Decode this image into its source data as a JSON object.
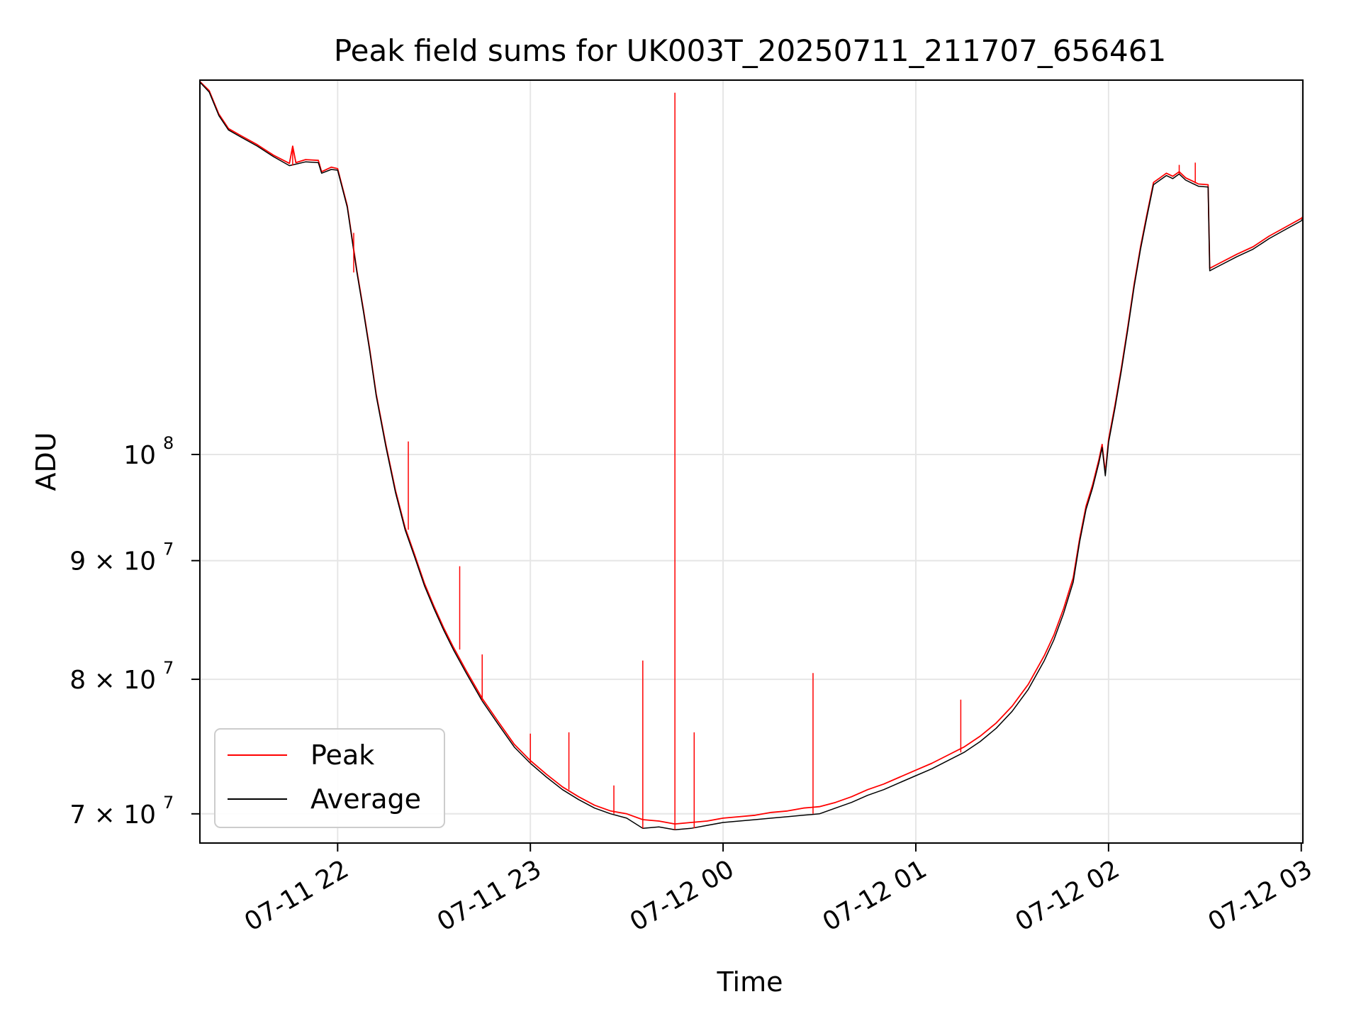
{
  "chart_data": {
    "type": "line",
    "title": "Peak field sums for UK003T_20250711_211707_656461",
    "xlabel": "Time",
    "ylabel": "ADU",
    "x_axis": {
      "type": "time",
      "range": [
        "2025-07-11 21:17:07",
        "2025-07-12 03:00:30"
      ],
      "ticks": [
        {
          "value": "2025-07-11 22:00",
          "label": "07-11 22"
        },
        {
          "value": "2025-07-11 23:00",
          "label": "07-11 23"
        },
        {
          "value": "2025-07-12 00:00",
          "label": "07-12 00"
        },
        {
          "value": "2025-07-12 01:00",
          "label": "07-12 01"
        },
        {
          "value": "2025-07-12 02:00",
          "label": "07-12 02"
        },
        {
          "value": "2025-07-12 03:00",
          "label": "07-12 03"
        }
      ],
      "tick_label_rotation": 30
    },
    "y_axis": {
      "scale": "log",
      "range": [
        68000000,
        145000000
      ],
      "ticks": [
        {
          "value": 70000000,
          "label": "7 × 10",
          "exponent": "7"
        },
        {
          "value": 80000000,
          "label": "8 × 10",
          "exponent": "7"
        },
        {
          "value": 90000000,
          "label": "9 × 10",
          "exponent": "7"
        },
        {
          "value": 100000000,
          "label": "10",
          "exponent": "8"
        }
      ]
    },
    "grid": true,
    "legend": {
      "placement": "lower-left"
    },
    "series": [
      {
        "name": "Peak",
        "color": "#ff0000",
        "points": [
          [
            "2025-07-11 21:17:07",
            144800000
          ],
          [
            "2025-07-11 21:20",
            143500000
          ],
          [
            "2025-07-11 21:23",
            140200000
          ],
          [
            "2025-07-11 21:26",
            138200000
          ],
          [
            "2025-07-11 21:30",
            137200000
          ],
          [
            "2025-07-11 21:35",
            136000000
          ],
          [
            "2025-07-11 21:40",
            134600000
          ],
          [
            "2025-07-11 21:45",
            133500000
          ],
          [
            "2025-07-11 21:46",
            135800000
          ],
          [
            "2025-07-11 21:47",
            133600000
          ],
          [
            "2025-07-11 21:50",
            134000000
          ],
          [
            "2025-07-11 21:54",
            133900000
          ],
          [
            "2025-07-11 21:55",
            132400000
          ],
          [
            "2025-07-11 21:58",
            133000000
          ],
          [
            "2025-07-11 22:00",
            132800000
          ],
          [
            "2025-07-11 22:03",
            128000000
          ],
          [
            "2025-07-11 22:06",
            120000000
          ],
          [
            "2025-07-11 22:08",
            115500000
          ],
          [
            "2025-07-11 22:10",
            111000000
          ],
          [
            "2025-07-11 22:12",
            106200000
          ],
          [
            "2025-07-11 22:15",
            101000000
          ],
          [
            "2025-07-11 22:18",
            96500000
          ],
          [
            "2025-07-11 22:21",
            93000000
          ],
          [
            "2025-07-11 22:24",
            90500000
          ],
          [
            "2025-07-11 22:27",
            88000000
          ],
          [
            "2025-07-11 22:30",
            86000000
          ],
          [
            "2025-07-11 22:33",
            84200000
          ],
          [
            "2025-07-11 22:36",
            82600000
          ],
          [
            "2025-07-11 22:40",
            80700000
          ],
          [
            "2025-07-11 22:45",
            78500000
          ],
          [
            "2025-07-11 22:50",
            76700000
          ],
          [
            "2025-07-11 22:55",
            75000000
          ],
          [
            "2025-07-11 23:00",
            73800000
          ],
          [
            "2025-07-11 23:05",
            72800000
          ],
          [
            "2025-07-11 23:10",
            71900000
          ],
          [
            "2025-07-11 23:15",
            71200000
          ],
          [
            "2025-07-11 23:20",
            70600000
          ],
          [
            "2025-07-11 23:25",
            70200000
          ],
          [
            "2025-07-11 23:30",
            70000000
          ],
          [
            "2025-07-11 23:35",
            69600000
          ],
          [
            "2025-07-11 23:40",
            69500000
          ],
          [
            "2025-07-11 23:45",
            69300000
          ],
          [
            "2025-07-11 23:50",
            69400000
          ],
          [
            "2025-07-11 23:55",
            69500000
          ],
          [
            "2025-07-12 00:00",
            69700000
          ],
          [
            "2025-07-12 00:05",
            69800000
          ],
          [
            "2025-07-12 00:10",
            69900000
          ],
          [
            "2025-07-12 00:15",
            70100000
          ],
          [
            "2025-07-12 00:20",
            70200000
          ],
          [
            "2025-07-12 00:25",
            70400000
          ],
          [
            "2025-07-12 00:30",
            70500000
          ],
          [
            "2025-07-12 00:35",
            70800000
          ],
          [
            "2025-07-12 00:40",
            71200000
          ],
          [
            "2025-07-12 00:45",
            71700000
          ],
          [
            "2025-07-12 00:50",
            72100000
          ],
          [
            "2025-07-12 00:55",
            72600000
          ],
          [
            "2025-07-12 01:00",
            73100000
          ],
          [
            "2025-07-12 01:05",
            73600000
          ],
          [
            "2025-07-12 01:10",
            74200000
          ],
          [
            "2025-07-12 01:15",
            74800000
          ],
          [
            "2025-07-12 01:20",
            75600000
          ],
          [
            "2025-07-12 01:25",
            76600000
          ],
          [
            "2025-07-12 01:30",
            77900000
          ],
          [
            "2025-07-12 01:35",
            79600000
          ],
          [
            "2025-07-12 01:40",
            81900000
          ],
          [
            "2025-07-12 01:43",
            83600000
          ],
          [
            "2025-07-12 01:46",
            85800000
          ],
          [
            "2025-07-12 01:49",
            88500000
          ],
          [
            "2025-07-12 01:51",
            92000000
          ],
          [
            "2025-07-12 01:53",
            95000000
          ],
          [
            "2025-07-12 01:55",
            97000000
          ],
          [
            "2025-07-12 01:57",
            99500000
          ],
          [
            "2025-07-12 01:58",
            101000000
          ],
          [
            "2025-07-12 01:59",
            98200000
          ],
          [
            "2025-07-12 02:00",
            101500000
          ],
          [
            "2025-07-12 02:02",
            105000000
          ],
          [
            "2025-07-12 02:04",
            109000000
          ],
          [
            "2025-07-12 02:06",
            113500000
          ],
          [
            "2025-07-12 02:08",
            118500000
          ],
          [
            "2025-07-12 02:10",
            123000000
          ],
          [
            "2025-07-12 02:12",
            127000000
          ],
          [
            "2025-07-12 02:14",
            131000000
          ],
          [
            "2025-07-12 02:16",
            131600000
          ],
          [
            "2025-07-12 02:18",
            132200000
          ],
          [
            "2025-07-12 02:20",
            131800000
          ],
          [
            "2025-07-12 02:22",
            132400000
          ],
          [
            "2025-07-12 02:24",
            131600000
          ],
          [
            "2025-07-12 02:26",
            131200000
          ],
          [
            "2025-07-12 02:28",
            130800000
          ],
          [
            "2025-07-12 02:31",
            130700000
          ],
          [
            "2025-07-12 02:31.5",
            120300000
          ],
          [
            "2025-07-12 02:34",
            120800000
          ],
          [
            "2025-07-12 02:40",
            122000000
          ],
          [
            "2025-07-12 02:45",
            122900000
          ],
          [
            "2025-07-12 02:50",
            124200000
          ],
          [
            "2025-07-12 02:55",
            125300000
          ],
          [
            "2025-07-12 03:00",
            126400000
          ],
          [
            "2025-07-12 03:00:30",
            126600000
          ]
        ],
        "spikes": [
          [
            "2025-07-11 21:46",
            135800000
          ],
          [
            "2025-07-11 22:05",
            124600000
          ],
          [
            "2025-07-11 22:22",
            101300000
          ],
          [
            "2025-07-11 22:38",
            89500000
          ],
          [
            "2025-07-11 22:45",
            82000000
          ],
          [
            "2025-07-11 23:00",
            75800000
          ],
          [
            "2025-07-11 23:12",
            75900000
          ],
          [
            "2025-07-11 23:26",
            72000000
          ],
          [
            "2025-07-11 23:35",
            81500000
          ],
          [
            "2025-07-11 23:45",
            143200000
          ],
          [
            "2025-07-11 23:51",
            75900000
          ],
          [
            "2025-07-12 00:28",
            80500000
          ],
          [
            "2025-07-12 01:14",
            78400000
          ],
          [
            "2025-07-12 02:22",
            133300000
          ],
          [
            "2025-07-12 02:27",
            133600000
          ]
        ]
      },
      {
        "name": "Average",
        "color": "#000000",
        "points": [
          [
            "2025-07-11 21:17:07",
            144700000
          ],
          [
            "2025-07-11 21:20",
            143300000
          ],
          [
            "2025-07-11 21:23",
            140000000
          ],
          [
            "2025-07-11 21:26",
            138000000
          ],
          [
            "2025-07-11 21:30",
            137000000
          ],
          [
            "2025-07-11 21:35",
            135800000
          ],
          [
            "2025-07-11 21:40",
            134400000
          ],
          [
            "2025-07-11 21:45",
            133200000
          ],
          [
            "2025-07-11 21:50",
            133700000
          ],
          [
            "2025-07-11 21:54",
            133600000
          ],
          [
            "2025-07-11 21:55",
            132200000
          ],
          [
            "2025-07-11 21:58",
            132700000
          ],
          [
            "2025-07-11 22:00",
            132600000
          ],
          [
            "2025-07-11 22:03",
            127800000
          ],
          [
            "2025-07-11 22:06",
            119800000
          ],
          [
            "2025-07-11 22:08",
            115300000
          ],
          [
            "2025-07-11 22:10",
            110800000
          ],
          [
            "2025-07-11 22:12",
            106000000
          ],
          [
            "2025-07-11 22:15",
            100800000
          ],
          [
            "2025-07-11 22:18",
            96300000
          ],
          [
            "2025-07-11 22:21",
            92800000
          ],
          [
            "2025-07-11 22:24",
            90300000
          ],
          [
            "2025-07-11 22:27",
            87800000
          ],
          [
            "2025-07-11 22:30",
            85800000
          ],
          [
            "2025-07-11 22:33",
            84000000
          ],
          [
            "2025-07-11 22:36",
            82400000
          ],
          [
            "2025-07-11 22:40",
            80500000
          ],
          [
            "2025-07-11 22:45",
            78300000
          ],
          [
            "2025-07-11 22:50",
            76500000
          ],
          [
            "2025-07-11 22:55",
            74800000
          ],
          [
            "2025-07-11 23:00",
            73600000
          ],
          [
            "2025-07-11 23:05",
            72600000
          ],
          [
            "2025-07-11 23:10",
            71700000
          ],
          [
            "2025-07-11 23:15",
            71000000
          ],
          [
            "2025-07-11 23:20",
            70400000
          ],
          [
            "2025-07-11 23:25",
            70000000
          ],
          [
            "2025-07-11 23:30",
            69700000
          ],
          [
            "2025-07-11 23:35",
            69000000
          ],
          [
            "2025-07-11 23:40",
            69100000
          ],
          [
            "2025-07-11 23:45",
            68900000
          ],
          [
            "2025-07-11 23:50",
            69000000
          ],
          [
            "2025-07-11 23:55",
            69200000
          ],
          [
            "2025-07-12 00:00",
            69400000
          ],
          [
            "2025-07-12 00:05",
            69500000
          ],
          [
            "2025-07-12 00:10",
            69600000
          ],
          [
            "2025-07-12 00:15",
            69700000
          ],
          [
            "2025-07-12 00:20",
            69800000
          ],
          [
            "2025-07-12 00:25",
            69900000
          ],
          [
            "2025-07-12 00:30",
            70000000
          ],
          [
            "2025-07-12 00:35",
            70400000
          ],
          [
            "2025-07-12 00:40",
            70800000
          ],
          [
            "2025-07-12 00:45",
            71300000
          ],
          [
            "2025-07-12 00:50",
            71700000
          ],
          [
            "2025-07-12 00:55",
            72200000
          ],
          [
            "2025-07-12 01:00",
            72700000
          ],
          [
            "2025-07-12 01:05",
            73200000
          ],
          [
            "2025-07-12 01:10",
            73800000
          ],
          [
            "2025-07-12 01:15",
            74400000
          ],
          [
            "2025-07-12 01:20",
            75200000
          ],
          [
            "2025-07-12 01:25",
            76200000
          ],
          [
            "2025-07-12 01:30",
            77500000
          ],
          [
            "2025-07-12 01:35",
            79200000
          ],
          [
            "2025-07-12 01:40",
            81500000
          ],
          [
            "2025-07-12 01:43",
            83200000
          ],
          [
            "2025-07-12 01:46",
            85400000
          ],
          [
            "2025-07-12 01:49",
            88100000
          ],
          [
            "2025-07-12 01:51",
            91700000
          ],
          [
            "2025-07-12 01:53",
            94700000
          ],
          [
            "2025-07-12 01:55",
            96700000
          ],
          [
            "2025-07-12 01:57",
            99200000
          ],
          [
            "2025-07-12 01:58",
            100700000
          ],
          [
            "2025-07-12 01:59",
            97900000
          ],
          [
            "2025-07-12 02:00",
            101200000
          ],
          [
            "2025-07-12 02:02",
            104700000
          ],
          [
            "2025-07-12 02:04",
            108700000
          ],
          [
            "2025-07-12 02:06",
            113200000
          ],
          [
            "2025-07-12 02:08",
            118200000
          ],
          [
            "2025-07-12 02:10",
            122700000
          ],
          [
            "2025-07-12 02:12",
            126700000
          ],
          [
            "2025-07-12 02:14",
            130700000
          ],
          [
            "2025-07-12 02:16",
            131300000
          ],
          [
            "2025-07-12 02:18",
            131900000
          ],
          [
            "2025-07-12 02:20",
            131500000
          ],
          [
            "2025-07-12 02:22",
            132100000
          ],
          [
            "2025-07-12 02:24",
            131300000
          ],
          [
            "2025-07-12 02:26",
            130900000
          ],
          [
            "2025-07-12 02:28",
            130500000
          ],
          [
            "2025-07-12 02:31",
            130400000
          ],
          [
            "2025-07-12 02:31.5",
            120000000
          ],
          [
            "2025-07-12 02:34",
            120500000
          ],
          [
            "2025-07-12 02:40",
            121700000
          ],
          [
            "2025-07-12 02:45",
            122600000
          ],
          [
            "2025-07-12 02:50",
            123900000
          ],
          [
            "2025-07-12 02:55",
            125000000
          ],
          [
            "2025-07-12 03:00",
            126100000
          ],
          [
            "2025-07-12 03:00:30",
            126400000
          ]
        ]
      }
    ]
  }
}
